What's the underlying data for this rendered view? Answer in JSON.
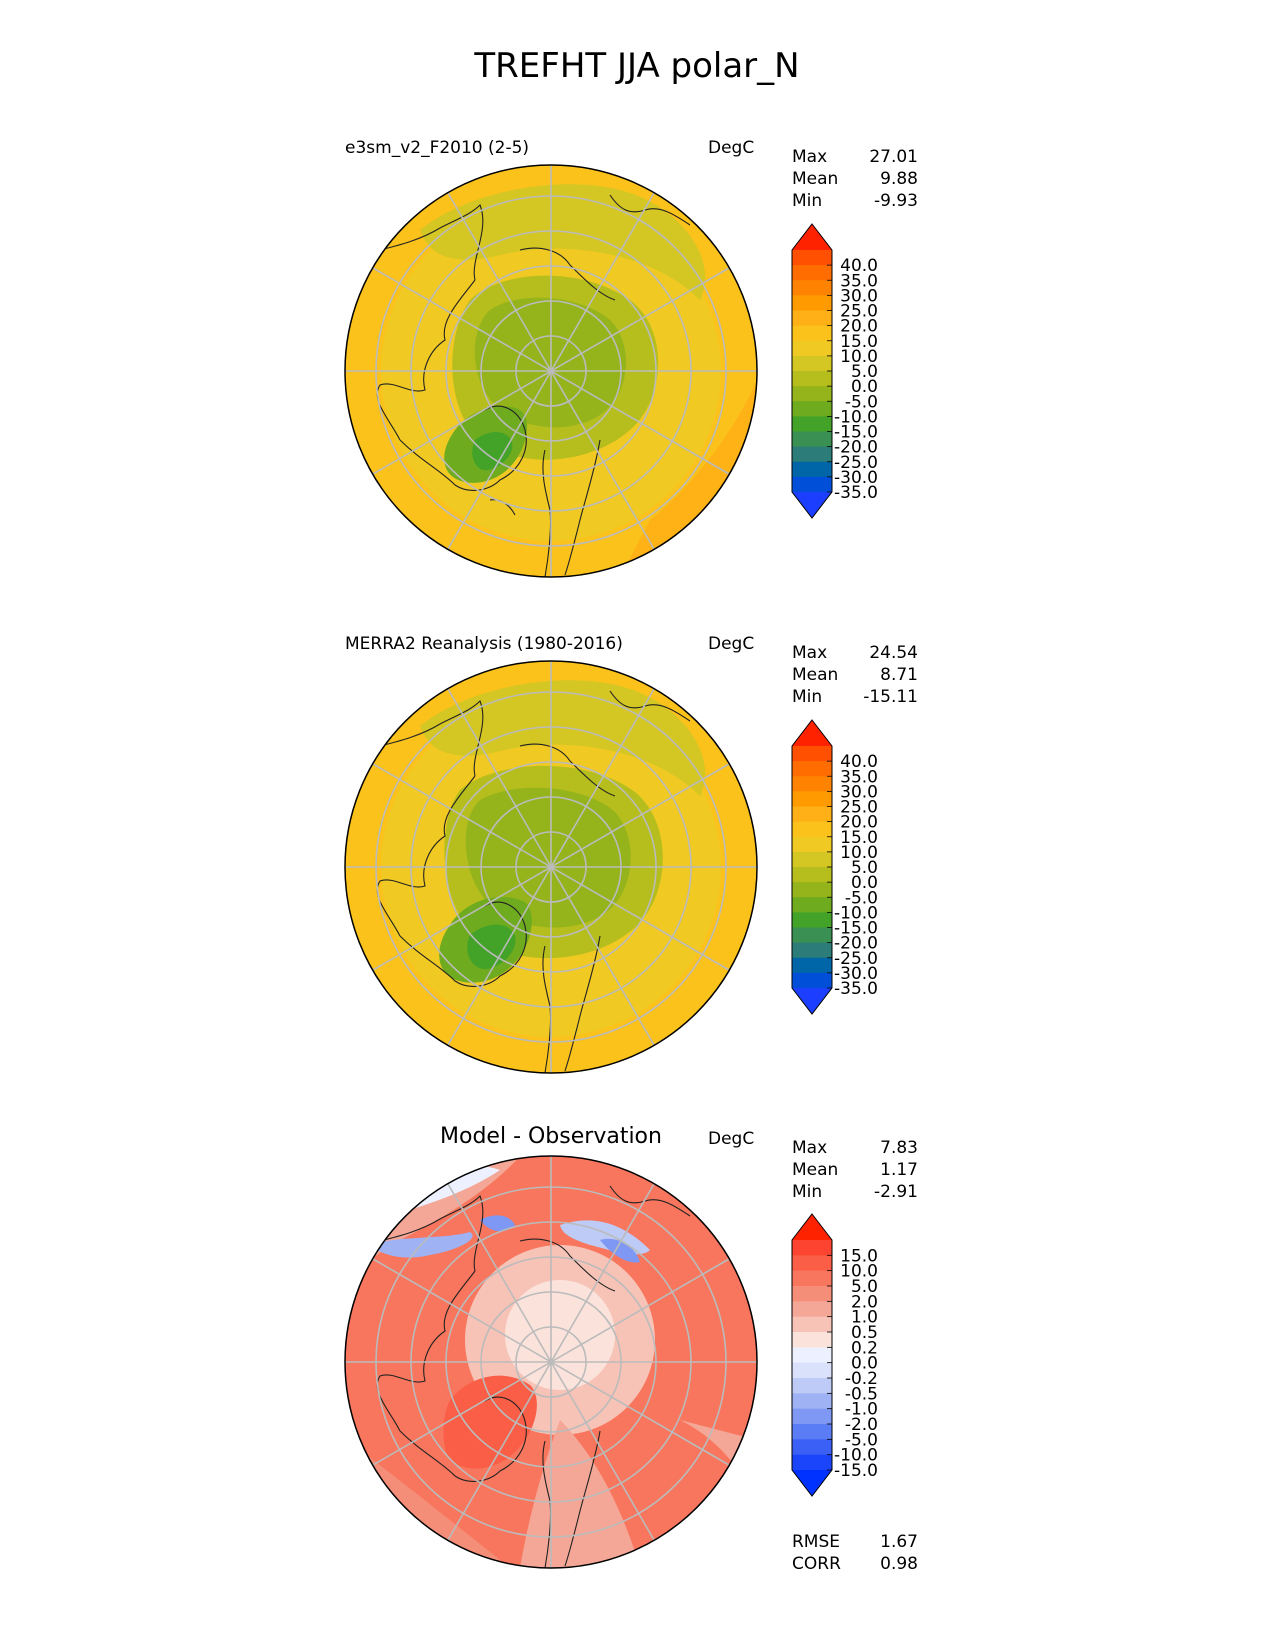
{
  "figure": {
    "title": "TREFHT JJA polar_N"
  },
  "chart_data": [
    {
      "type": "heatmap",
      "projection": "north-polar-stereographic",
      "title_left": "e3sm_v2_F2010 (2-5)",
      "units": "DegC",
      "stats": [
        {
          "label": "Max",
          "value": "27.01"
        },
        {
          "label": "Mean",
          "value": "9.88"
        },
        {
          "label": "Min",
          "value": "-9.93"
        }
      ],
      "colorbar": {
        "ticks": [
          "40.0",
          "35.0",
          "30.0",
          "25.0",
          "20.0",
          "15.0",
          "10.0",
          "5.0",
          "0.0",
          "-5.0",
          "-10.0",
          "-15.0",
          "-20.0",
          "-25.0",
          "-30.0",
          "-35.0"
        ],
        "colors": [
          "#ff2200",
          "#ff4f00",
          "#ff6d00",
          "#ff8300",
          "#ff9a00",
          "#ffb016",
          "#fcc21c",
          "#f0c923",
          "#d4c623",
          "#b5be1c",
          "#95b41b",
          "#6fab1f",
          "#43a328",
          "#3a8f52",
          "#2c7c79",
          "#0066a8",
          "#004fd8",
          "#1c3fff"
        ],
        "extend": "both"
      },
      "regions": [
        {
          "name": "central-arctic",
          "value": 2
        },
        {
          "name": "greenland",
          "value": -7
        },
        {
          "name": "mid-latitude-ring",
          "value": 15
        },
        {
          "name": "outer-ring",
          "value": 21
        }
      ]
    },
    {
      "type": "heatmap",
      "projection": "north-polar-stereographic",
      "title_left": "MERRA2 Reanalysis (1980-2016)",
      "units": "DegC",
      "stats": [
        {
          "label": "Max",
          "value": "24.54"
        },
        {
          "label": "Mean",
          "value": "8.71"
        },
        {
          "label": "Min",
          "value": "-15.11"
        }
      ],
      "colorbar": {
        "ticks": [
          "40.0",
          "35.0",
          "30.0",
          "25.0",
          "20.0",
          "15.0",
          "10.0",
          "5.0",
          "0.0",
          "-5.0",
          "-10.0",
          "-15.0",
          "-20.0",
          "-25.0",
          "-30.0",
          "-35.0"
        ],
        "colors": [
          "#ff2200",
          "#ff4f00",
          "#ff6d00",
          "#ff8300",
          "#ff9a00",
          "#ffb016",
          "#fcc21c",
          "#f0c923",
          "#d4c623",
          "#b5be1c",
          "#95b41b",
          "#6fab1f",
          "#43a328",
          "#3a8f52",
          "#2c7c79",
          "#0066a8",
          "#004fd8",
          "#1c3fff"
        ],
        "extend": "both"
      },
      "regions": [
        {
          "name": "central-arctic",
          "value": 0
        },
        {
          "name": "greenland",
          "value": -10
        },
        {
          "name": "mid-latitude-ring",
          "value": 14
        },
        {
          "name": "outer-ring",
          "value": 19
        }
      ]
    },
    {
      "type": "heatmap",
      "projection": "north-polar-stereographic",
      "title_center": "Model - Observation",
      "units": "DegC",
      "stats": [
        {
          "label": "Max",
          "value": "7.83"
        },
        {
          "label": "Mean",
          "value": "1.17"
        },
        {
          "label": "Min",
          "value": "-2.91"
        }
      ],
      "metrics": [
        {
          "label": "RMSE",
          "value": "1.67"
        },
        {
          "label": "CORR",
          "value": "0.98"
        }
      ],
      "colorbar": {
        "ticks": [
          "15.0",
          "10.0",
          "5.0",
          "2.0",
          "1.0",
          "0.5",
          "0.2",
          "0.0",
          "-0.2",
          "-0.5",
          "-1.0",
          "-2.0",
          "-5.0",
          "-10.0",
          "-15.0"
        ],
        "colors": [
          "#ff2200",
          "#fd4430",
          "#fa5e47",
          "#f8765d",
          "#f58e78",
          "#f4a797",
          "#f7c3b7",
          "#fbe3dc",
          "#edf1ff",
          "#d9e1fb",
          "#bdcbf6",
          "#9fb2f4",
          "#7e98f3",
          "#5a7cf4",
          "#3a60f6",
          "#1b45fb",
          "#0032ff"
        ],
        "extend": "both"
      },
      "regions": [
        {
          "name": "central-arctic",
          "value": 0.3
        },
        {
          "name": "greenland",
          "value": 4
        },
        {
          "name": "north-america-south",
          "value": 1.5
        },
        {
          "name": "siberia-north",
          "value": -0.5
        },
        {
          "name": "eurasia-south",
          "value": 2
        }
      ]
    }
  ]
}
